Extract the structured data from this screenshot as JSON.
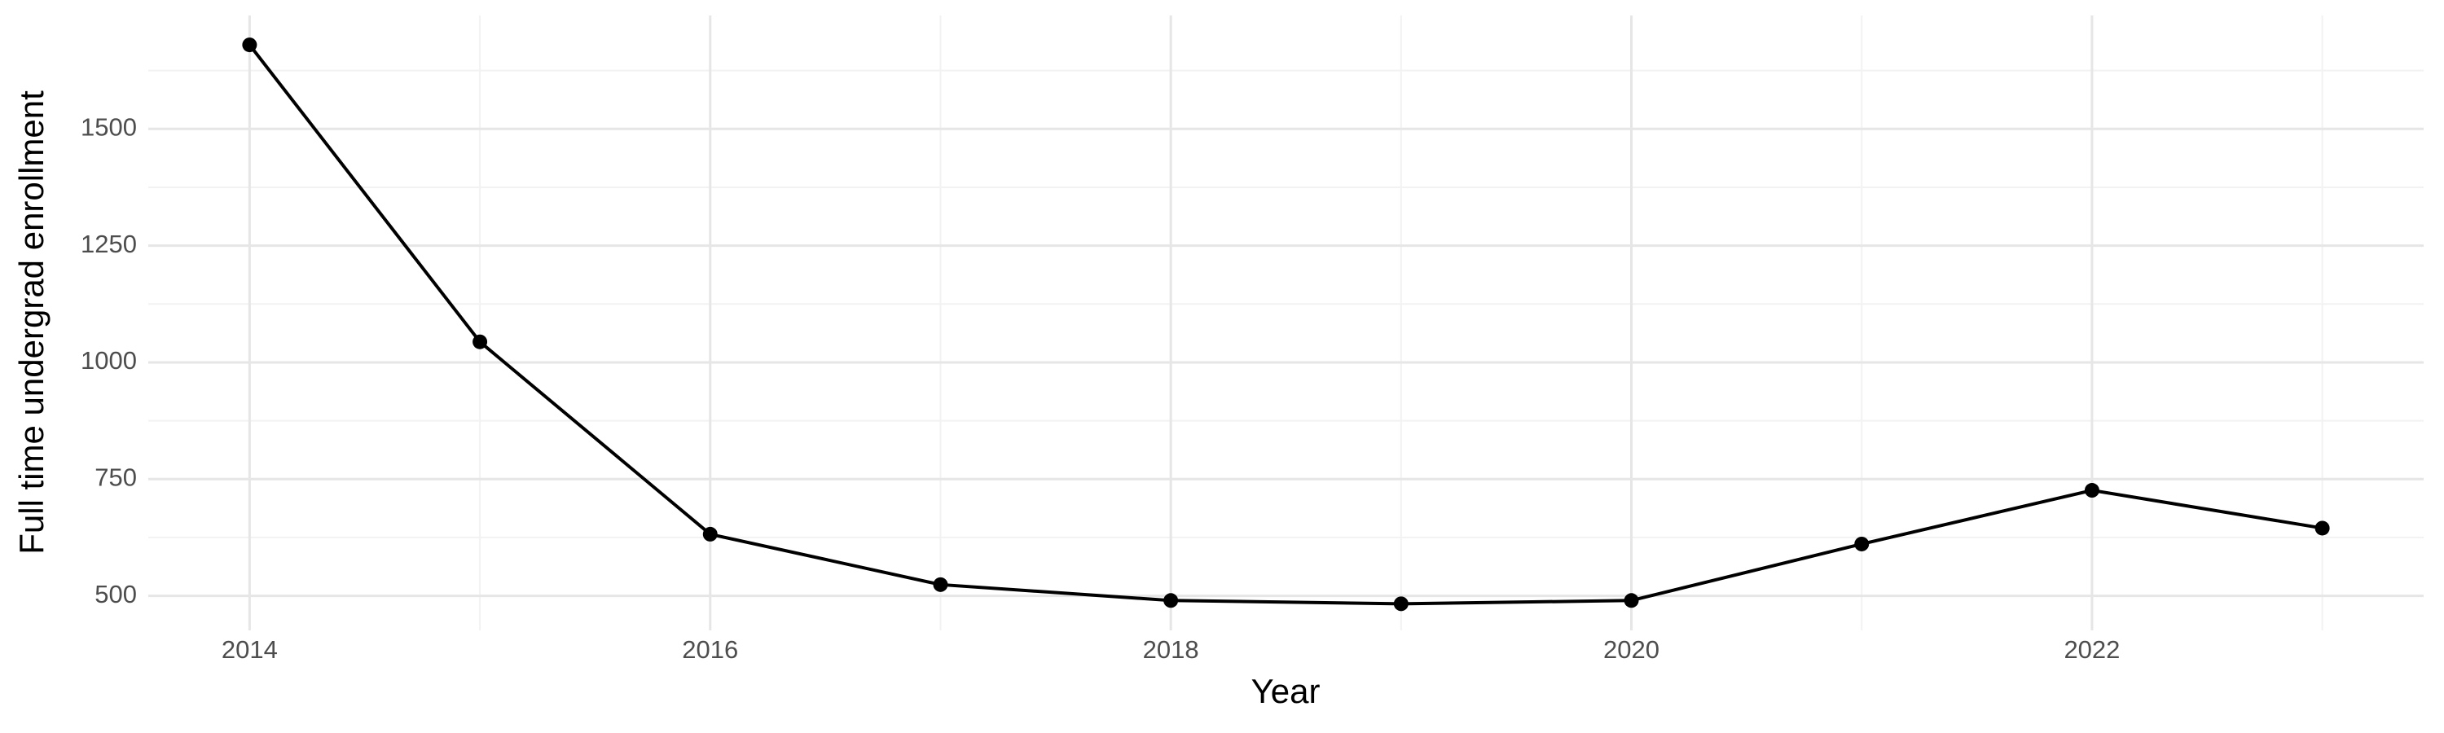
{
  "chart_data": {
    "type": "line",
    "x_label": "Year",
    "y_label": "Full time undergrad enrollment",
    "x": [
      2014,
      2015,
      2016,
      2017,
      2018,
      2019,
      2020,
      2021,
      2022,
      2023
    ],
    "series": [
      {
        "color": "#000000",
        "values": [
          1680,
          1044,
          632,
          524,
          490,
          483,
          490,
          611,
          726,
          645
        ]
      }
    ],
    "xlim": [
      2013.56,
      2023.44
    ],
    "xticks": [
      2014,
      2016,
      2018,
      2020,
      2022
    ],
    "ylim": [
      426,
      1743
    ],
    "yticks": [
      500,
      750,
      1000,
      1250,
      1500
    ],
    "grid": true
  }
}
